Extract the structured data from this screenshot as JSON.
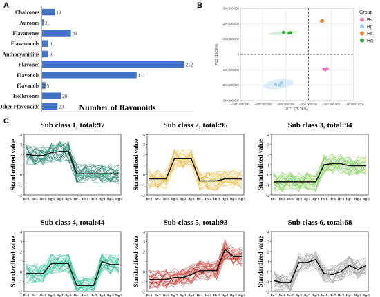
{
  "panels": {
    "a": "A",
    "b": "B",
    "c": "C"
  },
  "chart_data": [
    {
      "id": "A",
      "type": "bar",
      "orientation": "horizontal",
      "categories": [
        "Chalcones",
        "Aurones",
        "Flavanones",
        "Flavanonols",
        "Anthocyanidins",
        "Flavones",
        "Flavonols",
        "Flavanols",
        "Isoflavones",
        "Other Flavonoids"
      ],
      "values": [
        19,
        2,
        43,
        9,
        9,
        212,
        141,
        5,
        28,
        23
      ],
      "xlabel": "Number of flavonoids",
      "color": "#4472c4"
    },
    {
      "id": "B",
      "type": "scatter",
      "xlabel": "PC1 (75.26%)",
      "ylabel": "PC2 (18.56%)",
      "xlim": [
        -600000000,
        -100000000
      ],
      "ylim": [
        -300000000,
        300000000
      ],
      "xticks": [
        "−600,000,000",
        "−500,000,000",
        "−400,000,000",
        "−300,000,000",
        "−200,000,000",
        "−100,000,000"
      ],
      "yticks": [
        "300,000,000",
        "200,000,000",
        "100,000,000",
        "0",
        "−100,000,000",
        "−200,000,000",
        "−300,000,000"
      ],
      "legend_title": "Group",
      "legend_position": "right",
      "series": [
        {
          "name": "Bs",
          "color": "#e879b8",
          "x": [
            -232000000,
            -218000000,
            -225000000
          ],
          "y": [
            -95000000,
            -92000000,
            -100000000
          ]
        },
        {
          "name": "Bg",
          "color": "#9bc8ef",
          "x": [
            -445000000,
            -430000000,
            -420000000
          ],
          "y": [
            -195000000,
            -200000000,
            -185000000
          ]
        },
        {
          "name": "Hs",
          "color": "#e67e22",
          "x": [
            -243000000,
            -238000000,
            -240000000
          ],
          "y": [
            215000000,
            220000000,
            218000000
          ]
        },
        {
          "name": "Hg",
          "color": "#2ca02c",
          "x": [
            -410000000,
            -385000000,
            -378000000
          ],
          "y": [
            143000000,
            138000000,
            140000000
          ]
        }
      ]
    },
    {
      "id": "C",
      "type": "line",
      "xcategories": [
        "Bs-1",
        "Bs-2",
        "Bs-3",
        "Bg-1",
        "Bg-2",
        "Bg-3",
        "Hs-1",
        "Hs-2",
        "Hs-3",
        "Hg-1",
        "Hg-2",
        "Hg-3"
      ],
      "ylabel": "Standardized value",
      "ylim": [
        -2,
        4
      ],
      "yticks": [
        -2,
        -1,
        0,
        1,
        2,
        3,
        4
      ],
      "subclasses": [
        {
          "title": "Sub class 1, total:97",
          "color": "#2e8b74",
          "mean": [
            2.0,
            1.9,
            1.9,
            2.2,
            2.3,
            2.3,
            0.1,
            0.1,
            0.1,
            0.1,
            0.1,
            0.1
          ]
        },
        {
          "title": "Sub class 2, total:95",
          "color": "#e8c15a",
          "mean": [
            -0.4,
            -0.4,
            -0.4,
            1.6,
            1.6,
            1.6,
            -0.6,
            -0.6,
            -0.6,
            -0.4,
            -0.4,
            -0.4
          ]
        },
        {
          "title": "Sub class 3, total:94",
          "color": "#8fd16a",
          "mean": [
            -0.7,
            -0.7,
            -0.7,
            -0.7,
            -0.7,
            -0.7,
            1.0,
            1.1,
            1.1,
            0.9,
            0.9,
            0.9
          ]
        },
        {
          "title": "Sub class 4, total:44",
          "color": "#3fc7a0",
          "mean": [
            -0.2,
            -0.2,
            -0.2,
            0.8,
            0.8,
            0.8,
            -1.4,
            -1.4,
            -1.4,
            1.0,
            0.7,
            0.7
          ]
        },
        {
          "title": "Sub class 5, total:93",
          "color": "#c9473f",
          "mean": [
            -0.8,
            -0.8,
            -0.8,
            -0.6,
            -0.6,
            -0.3,
            0.1,
            0.1,
            0.1,
            2.2,
            1.5,
            1.5
          ]
        },
        {
          "title": "Sub class 6, total:68",
          "color": "#a8a8a8",
          "mean": [
            -0.9,
            -1.1,
            -1.1,
            0.9,
            0.9,
            1.2,
            -0.2,
            -0.3,
            0.0,
            0.6,
            0.2,
            0.6
          ]
        }
      ]
    }
  ]
}
